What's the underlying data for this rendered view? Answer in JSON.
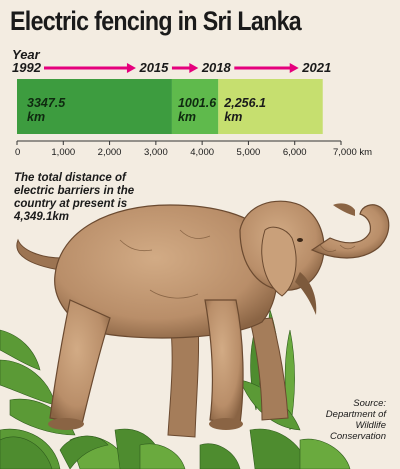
{
  "title": "Electric fencing in Sri Lanka",
  "chart_data": {
    "type": "bar",
    "orientation": "horizontal-stacked",
    "year_word": "Year",
    "segments": [
      {
        "from": "1992",
        "to": "2015",
        "value": 3347.5,
        "label": "3347.5",
        "unit": "km",
        "color": "#3d9c3f"
      },
      {
        "from": "2015",
        "to": "2018",
        "value": 1001.6,
        "label": "1001.6",
        "unit": "km",
        "color": "#5fba4c"
      },
      {
        "from": "2018",
        "to": "2021",
        "value": 2256.1,
        "label": "2,256.1",
        "unit": "km",
        "color": "#c6df6f"
      }
    ],
    "years": [
      "1992",
      "2015",
      "2018",
      "2021"
    ],
    "xlim": [
      0,
      7000
    ],
    "ticks": [
      "0",
      "1,000",
      "2,000",
      "3,000",
      "4,000",
      "5,000",
      "6,000",
      "7,000 km"
    ],
    "tick_values": [
      0,
      1000,
      2000,
      3000,
      4000,
      5000,
      6000,
      7000
    ],
    "arrow_color": "#e5007d"
  },
  "annotation": "The total distance of electric barriers in the country at present is 4,349.1km",
  "source": {
    "line1": "Source:",
    "line2": "Department of",
    "line3": "Wildlife",
    "line4": "Conservation"
  },
  "illustration": {
    "subject": "elephant-illustration",
    "colors": {
      "body": "#b98e69",
      "shade": "#8a6444",
      "leaf": "#5b9a36"
    }
  }
}
